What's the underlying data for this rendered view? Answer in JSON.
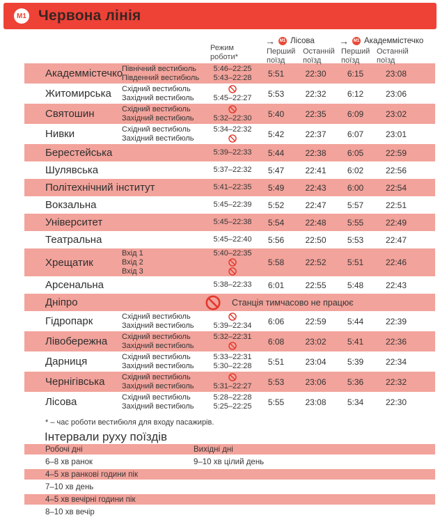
{
  "banner": {
    "badge": "M1",
    "title": "Червона лінія"
  },
  "colors": {
    "brand_red": "#EE4237",
    "row_pink": "#F2A39B",
    "closed_icon_red": "#E23A2E"
  },
  "table": {
    "headers": {
      "rezhym": "Режим роботи*",
      "first": "Перший поїзд",
      "last": "Останній поїзд",
      "directions": [
        {
          "badge": "M1",
          "name": "Лісова"
        },
        {
          "badge": "M1",
          "name": "Академмістечко"
        }
      ]
    },
    "rows": [
      {
        "station": "Академмістечко",
        "shade": "pink",
        "entries": [
          {
            "label": "Північний вестибюль",
            "hours": "5:46–22:25",
            "closed": false
          },
          {
            "label": "Південний вестибюль",
            "hours": "5:43–22:28",
            "closed": false
          }
        ],
        "times": [
          "5:51",
          "22:30",
          "6:15",
          "23:08"
        ]
      },
      {
        "station": "Житомирська",
        "shade": "white",
        "entries": [
          {
            "label": "Східний вестибюль",
            "hours": "",
            "closed": true
          },
          {
            "label": "Західний вестибюль",
            "hours": "5:45–22:27",
            "closed": false
          }
        ],
        "times": [
          "5:53",
          "22:32",
          "6:12",
          "23:06"
        ]
      },
      {
        "station": "Святошин",
        "shade": "pink",
        "entries": [
          {
            "label": "Східний вестибюль",
            "hours": "",
            "closed": true
          },
          {
            "label": "Західний вестибюль",
            "hours": "5:32–22:30",
            "closed": false
          }
        ],
        "times": [
          "5:40",
          "22:35",
          "6:09",
          "23:02"
        ]
      },
      {
        "station": "Нивки",
        "shade": "white",
        "entries": [
          {
            "label": "Східний вестибюль",
            "hours": "5:34–22:32",
            "closed": false
          },
          {
            "label": "Західний вестибюль",
            "hours": "",
            "closed": true
          }
        ],
        "times": [
          "5:42",
          "22:37",
          "6:07",
          "23:01"
        ]
      },
      {
        "station": "Берестейська",
        "shade": "pink",
        "entries": [
          {
            "label": "",
            "hours": "5:39–22:33",
            "closed": false
          }
        ],
        "times": [
          "5:44",
          "22:38",
          "6:05",
          "22:59"
        ]
      },
      {
        "station": "Шулявська",
        "shade": "white",
        "entries": [
          {
            "label": "",
            "hours": "5:37–22:32",
            "closed": false
          }
        ],
        "times": [
          "5:47",
          "22:41",
          "6:02",
          "22:56"
        ]
      },
      {
        "station": "Політехнічний інститут",
        "shade": "pink",
        "entries": [
          {
            "label": "",
            "hours": "5:41–22:35",
            "closed": false
          }
        ],
        "times": [
          "5:49",
          "22:43",
          "6:00",
          "22:54"
        ]
      },
      {
        "station": "Вокзальна",
        "shade": "white",
        "entries": [
          {
            "label": "",
            "hours": "5:45–22:39",
            "closed": false
          }
        ],
        "times": [
          "5:52",
          "22:47",
          "5:57",
          "22:51"
        ]
      },
      {
        "station": "Університет",
        "shade": "pink",
        "entries": [
          {
            "label": "",
            "hours": "5:45–22:38",
            "closed": false
          }
        ],
        "times": [
          "5:54",
          "22:48",
          "5:55",
          "22:49"
        ]
      },
      {
        "station": "Театральна",
        "shade": "white",
        "entries": [
          {
            "label": "",
            "hours": "5:45–22:40",
            "closed": false
          }
        ],
        "times": [
          "5:56",
          "22:50",
          "5:53",
          "22:47"
        ]
      },
      {
        "station": "Хрещатик",
        "shade": "pink",
        "entries": [
          {
            "label": "Вхід 1",
            "hours": "5:40–22:35",
            "closed": false
          },
          {
            "label": "Вхід 2",
            "hours": "",
            "closed": true
          },
          {
            "label": "Вхід 3",
            "hours": "",
            "closed": true
          }
        ],
        "times": [
          "5:58",
          "22:52",
          "5:51",
          "22:46"
        ]
      },
      {
        "station": "Арсенальна",
        "shade": "white",
        "entries": [
          {
            "label": "",
            "hours": "5:38–22:33",
            "closed": false
          }
        ],
        "times": [
          "6:01",
          "22:55",
          "5:48",
          "22:43"
        ]
      },
      {
        "station": "Дніпро",
        "shade": "pink",
        "note": "Станція тимчасово не працює",
        "entries": [],
        "times": []
      },
      {
        "station": "Гідропарк",
        "shade": "white",
        "entries": [
          {
            "label": "Східний вестибюль",
            "hours": "",
            "closed": true
          },
          {
            "label": "Західний вестибюль",
            "hours": "5:39–22:34",
            "closed": false
          }
        ],
        "times": [
          "6:06",
          "22:59",
          "5:44",
          "22:39"
        ]
      },
      {
        "station": "Лівобережна",
        "shade": "pink",
        "entries": [
          {
            "label": "Східний вестибюль",
            "hours": "5:32–22:31",
            "closed": false
          },
          {
            "label": "Західний вестибюль",
            "hours": "",
            "closed": true
          }
        ],
        "times": [
          "6:08",
          "23:02",
          "5:41",
          "22:36"
        ]
      },
      {
        "station": "Дарниця",
        "shade": "white",
        "entries": [
          {
            "label": "Східний вестибюль",
            "hours": "5:33–22:31",
            "closed": false
          },
          {
            "label": "Західний вестибюль",
            "hours": "5:30–22:28",
            "closed": false
          }
        ],
        "times": [
          "5:51",
          "23:04",
          "5:39",
          "22:34"
        ]
      },
      {
        "station": "Чернігівська",
        "shade": "pink",
        "entries": [
          {
            "label": "Східний вестибюль",
            "hours": "",
            "closed": true
          },
          {
            "label": "Західний вестибюль",
            "hours": "5:31–22:27",
            "closed": false
          }
        ],
        "times": [
          "5:53",
          "23:06",
          "5:36",
          "22:32"
        ]
      },
      {
        "station": "Лісова",
        "shade": "white",
        "entries": [
          {
            "label": "Східний вестибюль",
            "hours": "5:28–22:28",
            "closed": false
          },
          {
            "label": "Західний вестибюль",
            "hours": "5:25–22:25",
            "closed": false
          }
        ],
        "times": [
          "5:55",
          "23:08",
          "5:34",
          "22:30"
        ]
      }
    ]
  },
  "footnote": "* – час роботи вестибюля для входу пасажирів.",
  "intervals": {
    "heading": "Інтервали руху поїздів",
    "rows": [
      {
        "left": "Робочі дні",
        "right": "Вихідні дні",
        "shade": "pink"
      },
      {
        "left": "6–8 хв ранок",
        "right": "9–10 хв цілий день",
        "shade": "white"
      },
      {
        "left": "4–5 хв ранкові години пік",
        "right": "",
        "shade": "pink"
      },
      {
        "left": "7–10 хв день",
        "right": "",
        "shade": "white"
      },
      {
        "left": "4–5 хв вечірні години пік",
        "right": "",
        "shade": "pink"
      },
      {
        "left": "8–10 хв вечір",
        "right": "",
        "shade": "white"
      }
    ]
  }
}
